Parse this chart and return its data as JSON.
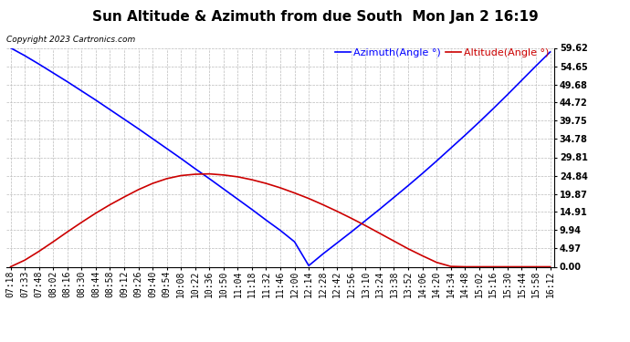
{
  "title": "Sun Altitude & Azimuth from due South  Mon Jan 2 16:19",
  "copyright": "Copyright 2023 Cartronics.com",
  "legend_azimuth": "Azimuth(Angle °)",
  "legend_altitude": "Altitude(Angle °)",
  "x_labels": [
    "07:18",
    "07:33",
    "07:48",
    "08:02",
    "08:16",
    "08:30",
    "08:44",
    "08:58",
    "09:12",
    "09:26",
    "09:40",
    "09:54",
    "10:08",
    "10:22",
    "10:36",
    "10:50",
    "11:04",
    "11:18",
    "11:32",
    "11:46",
    "12:00",
    "12:14",
    "12:28",
    "12:42",
    "12:56",
    "13:10",
    "13:24",
    "13:38",
    "13:52",
    "14:06",
    "14:20",
    "14:34",
    "14:48",
    "15:02",
    "15:16",
    "15:30",
    "15:44",
    "15:58",
    "16:12"
  ],
  "azimuth_values": [
    59.62,
    57.5,
    55.2,
    52.8,
    50.4,
    47.9,
    45.4,
    42.8,
    40.2,
    37.6,
    34.9,
    32.2,
    29.5,
    26.7,
    24.0,
    21.2,
    18.4,
    15.6,
    12.7,
    9.9,
    6.8,
    0.3,
    3.5,
    6.5,
    9.5,
    12.6,
    15.7,
    18.9,
    22.1,
    25.4,
    28.8,
    32.3,
    35.8,
    39.4,
    43.1,
    46.9,
    50.8,
    54.7,
    58.5
  ],
  "altitude_values": [
    0.0,
    1.8,
    4.2,
    6.8,
    9.5,
    12.1,
    14.6,
    16.9,
    19.0,
    21.0,
    22.7,
    24.0,
    24.84,
    25.2,
    25.3,
    25.0,
    24.5,
    23.7,
    22.7,
    21.5,
    20.1,
    18.6,
    16.9,
    15.1,
    13.2,
    11.2,
    9.1,
    7.0,
    4.9,
    3.0,
    1.2,
    0.1,
    0.0,
    0.0,
    0.0,
    0.0,
    0.0,
    0.0,
    0.0
  ],
  "y_ticks": [
    0.0,
    4.97,
    9.94,
    14.91,
    19.87,
    24.84,
    29.81,
    34.78,
    39.75,
    44.72,
    49.68,
    54.65,
    59.62
  ],
  "y_tick_labels": [
    "0.00",
    "4.97",
    "9.94",
    "14.91",
    "19.87",
    "24.84",
    "29.81",
    "34.78",
    "39.75",
    "44.72",
    "49.68",
    "54.65",
    "59.62"
  ],
  "ylim": [
    0.0,
    59.62
  ],
  "azimuth_color": "#0000ff",
  "altitude_color": "#cc0000",
  "background_color": "#ffffff",
  "grid_color": "#bbbbbb",
  "title_fontsize": 11,
  "legend_fontsize": 8,
  "tick_fontsize": 7,
  "copyright_fontsize": 6.5
}
